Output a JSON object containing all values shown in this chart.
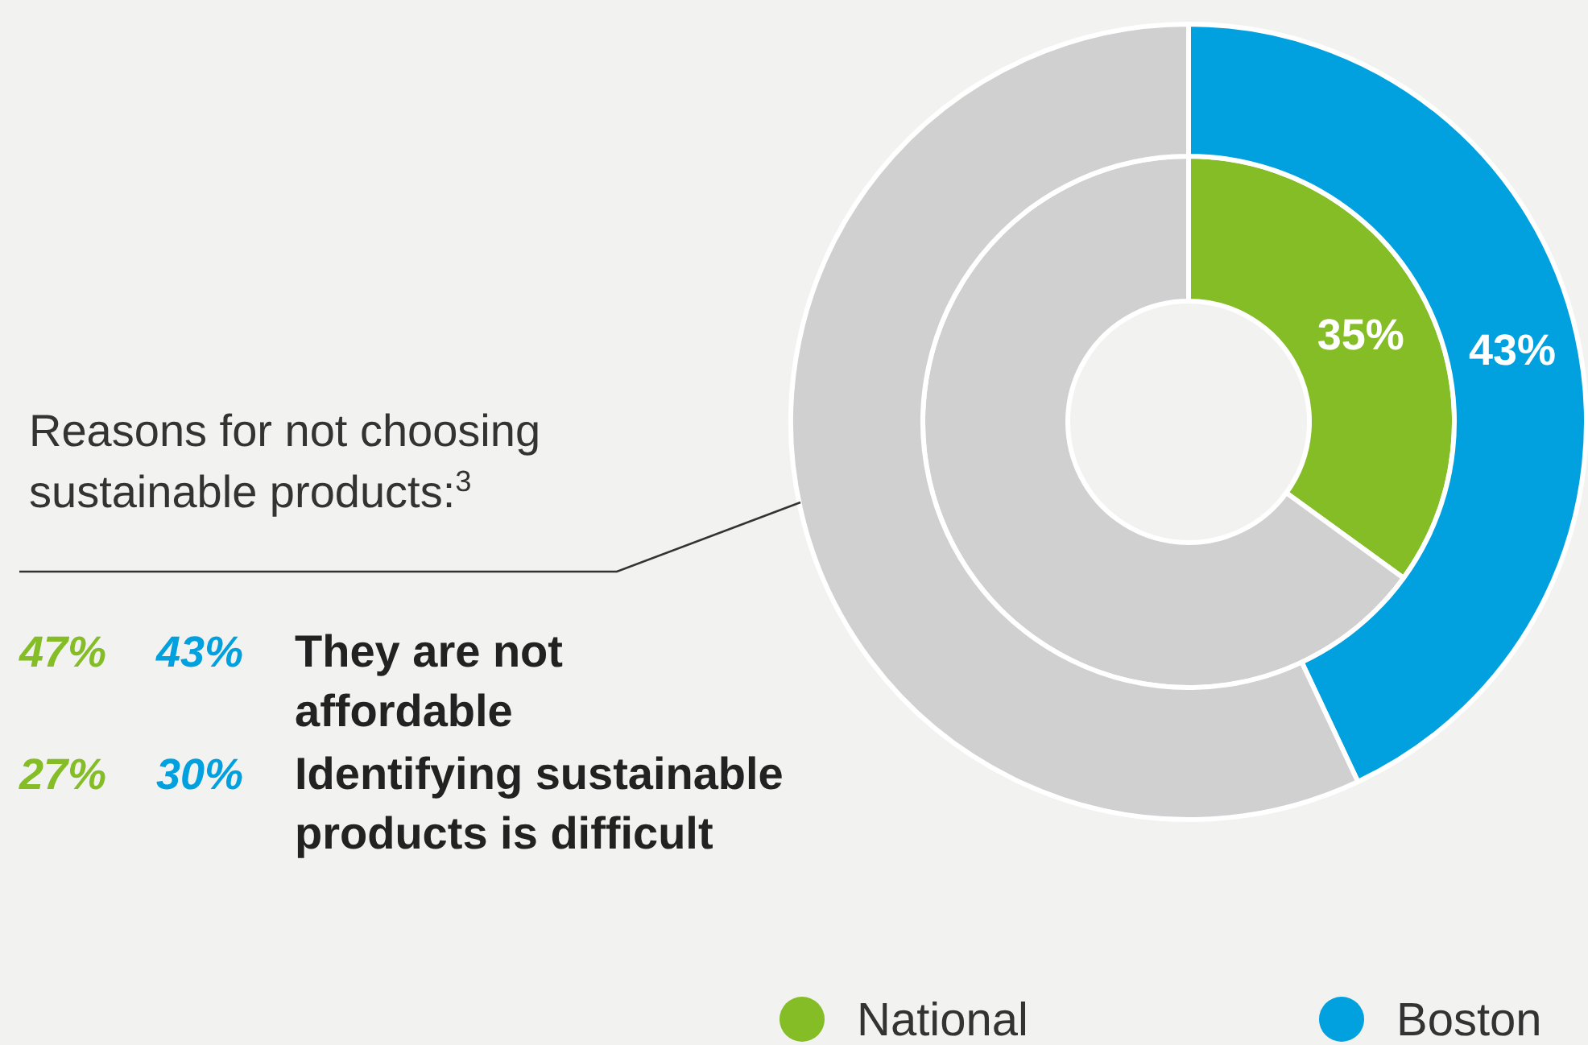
{
  "chart_data": {
    "type": "donut",
    "categories": [
      null,
      null
    ],
    "series": [
      {
        "name": "National",
        "color": "#84bd26",
        "colors": [
          "#84bd26",
          "#d0d0d0"
        ],
        "values": [
          35,
          65
        ],
        "value_labels": [
          "35%",
          null
        ]
      },
      {
        "name": "Boston",
        "color": "#00a1de",
        "colors": [
          "#00a1de",
          "#d0d0d0"
        ],
        "values": [
          43,
          57
        ],
        "value_labels": [
          "43%",
          null
        ]
      }
    ],
    "legend": "bottom",
    "annotations": [
      "Reasons for not choosing sustainable products:$^{3}$",
      "47%",
      "43%",
      "They are not affordable",
      "27%",
      "30%",
      "Identifying sustainable products is difficult"
    ]
  }
}
